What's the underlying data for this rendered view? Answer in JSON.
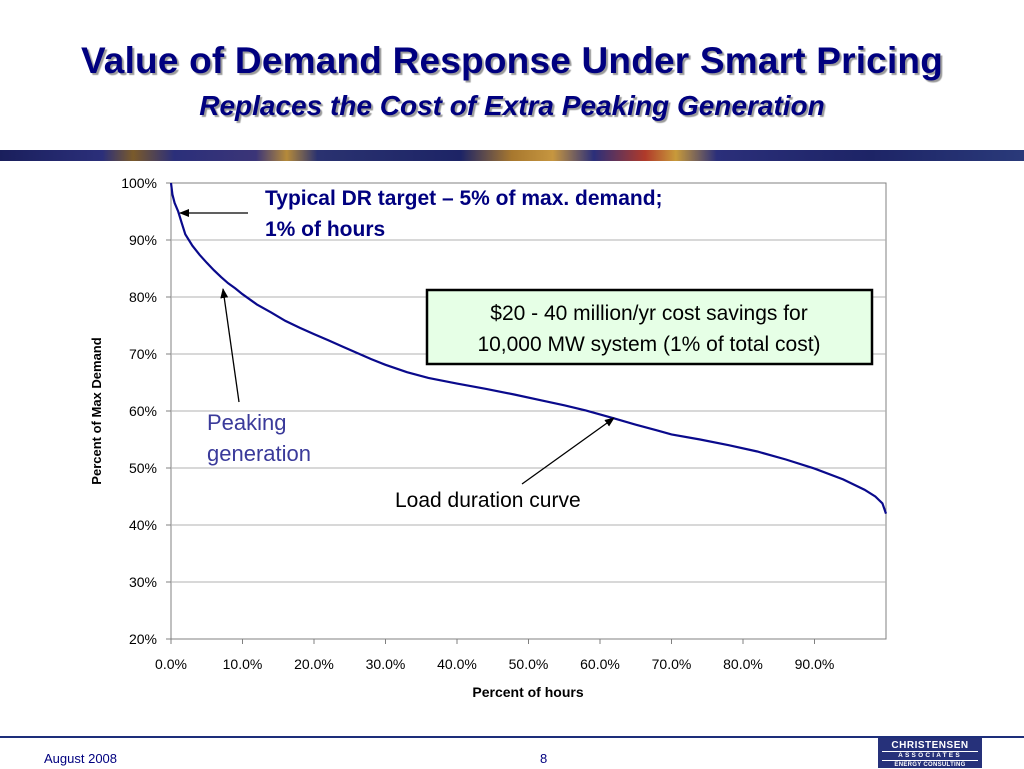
{
  "slide": {
    "title": "Value of Demand Response Under Smart Pricing",
    "subtitle": "Replaces the Cost of Extra Peaking Generation",
    "footer_date": "August  2008",
    "page_number": "8",
    "logo": {
      "line1": "CHRISTENSEN",
      "line2": "ASSOCIATES",
      "line3": "ENERGY CONSULTING"
    }
  },
  "annotations": {
    "dr_target_line1": "Typical DR target – 5% of max. demand;",
    "dr_target_line2": "1% of hours",
    "savings_line1": "$20 - 40 million/yr cost savings for",
    "savings_line2": "10,000 MW system (1% of total cost)",
    "peaking_line1": "Peaking",
    "peaking_line2": "generation",
    "load_curve": "Load duration curve"
  },
  "colors": {
    "title": "#00007f",
    "line": "#0a0a8c",
    "annotation_dark": "#00007f",
    "annotation_peaking": "#3a3a9a",
    "savings_box_fill": "#e6ffe6"
  },
  "chart_data": {
    "type": "line",
    "xlabel": "Percent of hours",
    "ylabel": "Percent of Max Demand",
    "xlim": [
      0,
      100
    ],
    "ylim": [
      20,
      100
    ],
    "x_tick_labels": [
      "0.0%",
      "10.0%",
      "20.0%",
      "30.0%",
      "40.0%",
      "50.0%",
      "60.0%",
      "70.0%",
      "80.0%",
      "90.0%"
    ],
    "x_tick_values": [
      0,
      10,
      20,
      30,
      40,
      50,
      60,
      70,
      80,
      90
    ],
    "y_tick_labels": [
      "20%",
      "30%",
      "40%",
      "50%",
      "60%",
      "70%",
      "80%",
      "90%",
      "100%"
    ],
    "y_tick_values": [
      20,
      30,
      40,
      50,
      60,
      70,
      80,
      90,
      100
    ],
    "grid": "horizontal",
    "legend": "none",
    "series": [
      {
        "x": [
          0,
          0.2,
          0.5,
          1,
          1.5,
          2,
          3,
          4,
          5,
          6,
          7,
          8,
          9,
          10,
          12,
          14,
          16,
          18,
          20,
          22,
          24,
          26,
          28,
          30,
          33,
          36,
          40,
          44,
          48,
          52,
          55,
          58,
          60,
          62,
          65,
          68,
          70,
          74,
          78,
          82,
          86,
          90,
          94,
          97,
          98.5,
          99.5,
          100
        ],
        "y": [
          100,
          98,
          96.5,
          95,
          93,
          91,
          89,
          87.4,
          86,
          84.7,
          83.5,
          82.4,
          81.5,
          80.5,
          78.7,
          77.3,
          75.8,
          74.6,
          73.5,
          72.4,
          71.3,
          70.2,
          69.1,
          68.1,
          66.8,
          65.8,
          64.8,
          63.9,
          62.9,
          61.8,
          61,
          60.1,
          59.4,
          58.7,
          57.6,
          56.6,
          55.9,
          55,
          54,
          52.9,
          51.5,
          49.9,
          48,
          46.2,
          45,
          43.8,
          42
        ]
      }
    ]
  }
}
